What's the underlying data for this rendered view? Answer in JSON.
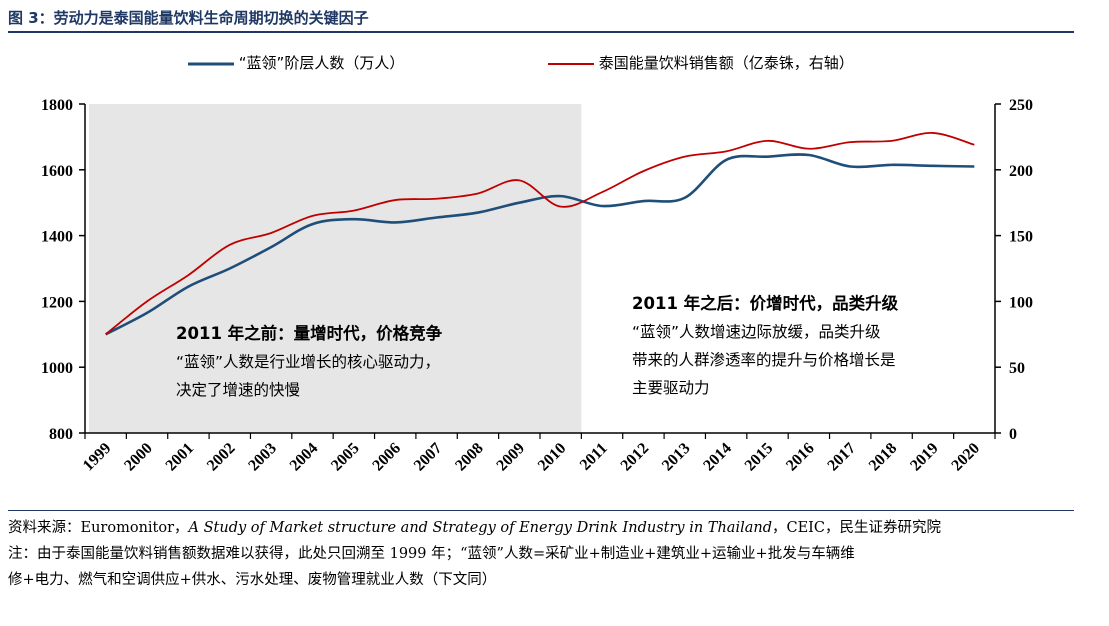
{
  "figure_title": "图 3：劳动力是泰国能量饮料生命周期切换的关键因子",
  "legend": [
    {
      "label": "“蓝领”阶层人数（万人）",
      "color": "#1f4e79"
    },
    {
      "label": "泰国能量饮料销售额（亿泰铢，右轴）",
      "color": "#c00000"
    }
  ],
  "annotations": {
    "left_title": "2011 年之前：量增时代，价格竞争",
    "left_line1": "“蓝领”人数是行业增长的核心驱动力，",
    "left_line2": "决定了增速的快慢",
    "right_title": "2011 年之后：价增时代，品类升级",
    "right_line1": "“蓝领”人数增速边际放缓，品类升级",
    "right_line2": "带来的人群渗透率的提升与价格增长是",
    "right_line3": "主要驱动力"
  },
  "notes": {
    "source_prefix": "资料来源：Euromonitor，",
    "source_italic": "A Study of Market structure and Strategy of Energy Drink Industry in Thailand",
    "source_suffix": "，CEIC，民生证券研究院",
    "note_line1": "注：由于泰国能量饮料销售额数据难以获得，此处只回溯至 1999 年；“蓝领”人数=采矿业+制造业+建筑业+运输业+批发与车辆维",
    "note_line2": "修+电力、燃气和空调供应+供水、污水处理、废物管理就业人数（下文同）"
  },
  "chart_data": {
    "type": "line",
    "x": [
      1999,
      2000,
      2001,
      2002,
      2003,
      2004,
      2005,
      2006,
      2007,
      2008,
      2009,
      2010,
      2011,
      2012,
      2013,
      2014,
      2015,
      2016,
      2017,
      2018,
      2019,
      2020
    ],
    "shaded_range": [
      1999,
      2010
    ],
    "y_left": {
      "ticks": [
        800,
        1000,
        1200,
        1400,
        1600,
        1800
      ],
      "range": [
        800,
        1800
      ]
    },
    "y_right": {
      "ticks": [
        0,
        50,
        100,
        150,
        200,
        250
      ],
      "range": [
        0,
        250
      ]
    },
    "series": [
      {
        "name": "“蓝领”阶层人数（万人）",
        "axis": "left",
        "color": "#1f4e79",
        "values": [
          1100,
          1165,
          1245,
          1300,
          1365,
          1435,
          1450,
          1440,
          1455,
          1470,
          1500,
          1520,
          1490,
          1505,
          1515,
          1630,
          1640,
          1645,
          1610,
          1615,
          1612,
          1610
        ]
      },
      {
        "name": "泰国能量饮料销售额（亿泰铢，右轴）",
        "axis": "right",
        "color": "#c00000",
        "values": [
          75,
          100,
          120,
          143,
          152,
          165,
          169,
          177,
          178,
          182,
          192,
          172,
          183,
          199,
          210,
          214,
          222,
          216,
          221,
          222,
          228,
          219
        ]
      }
    ]
  }
}
